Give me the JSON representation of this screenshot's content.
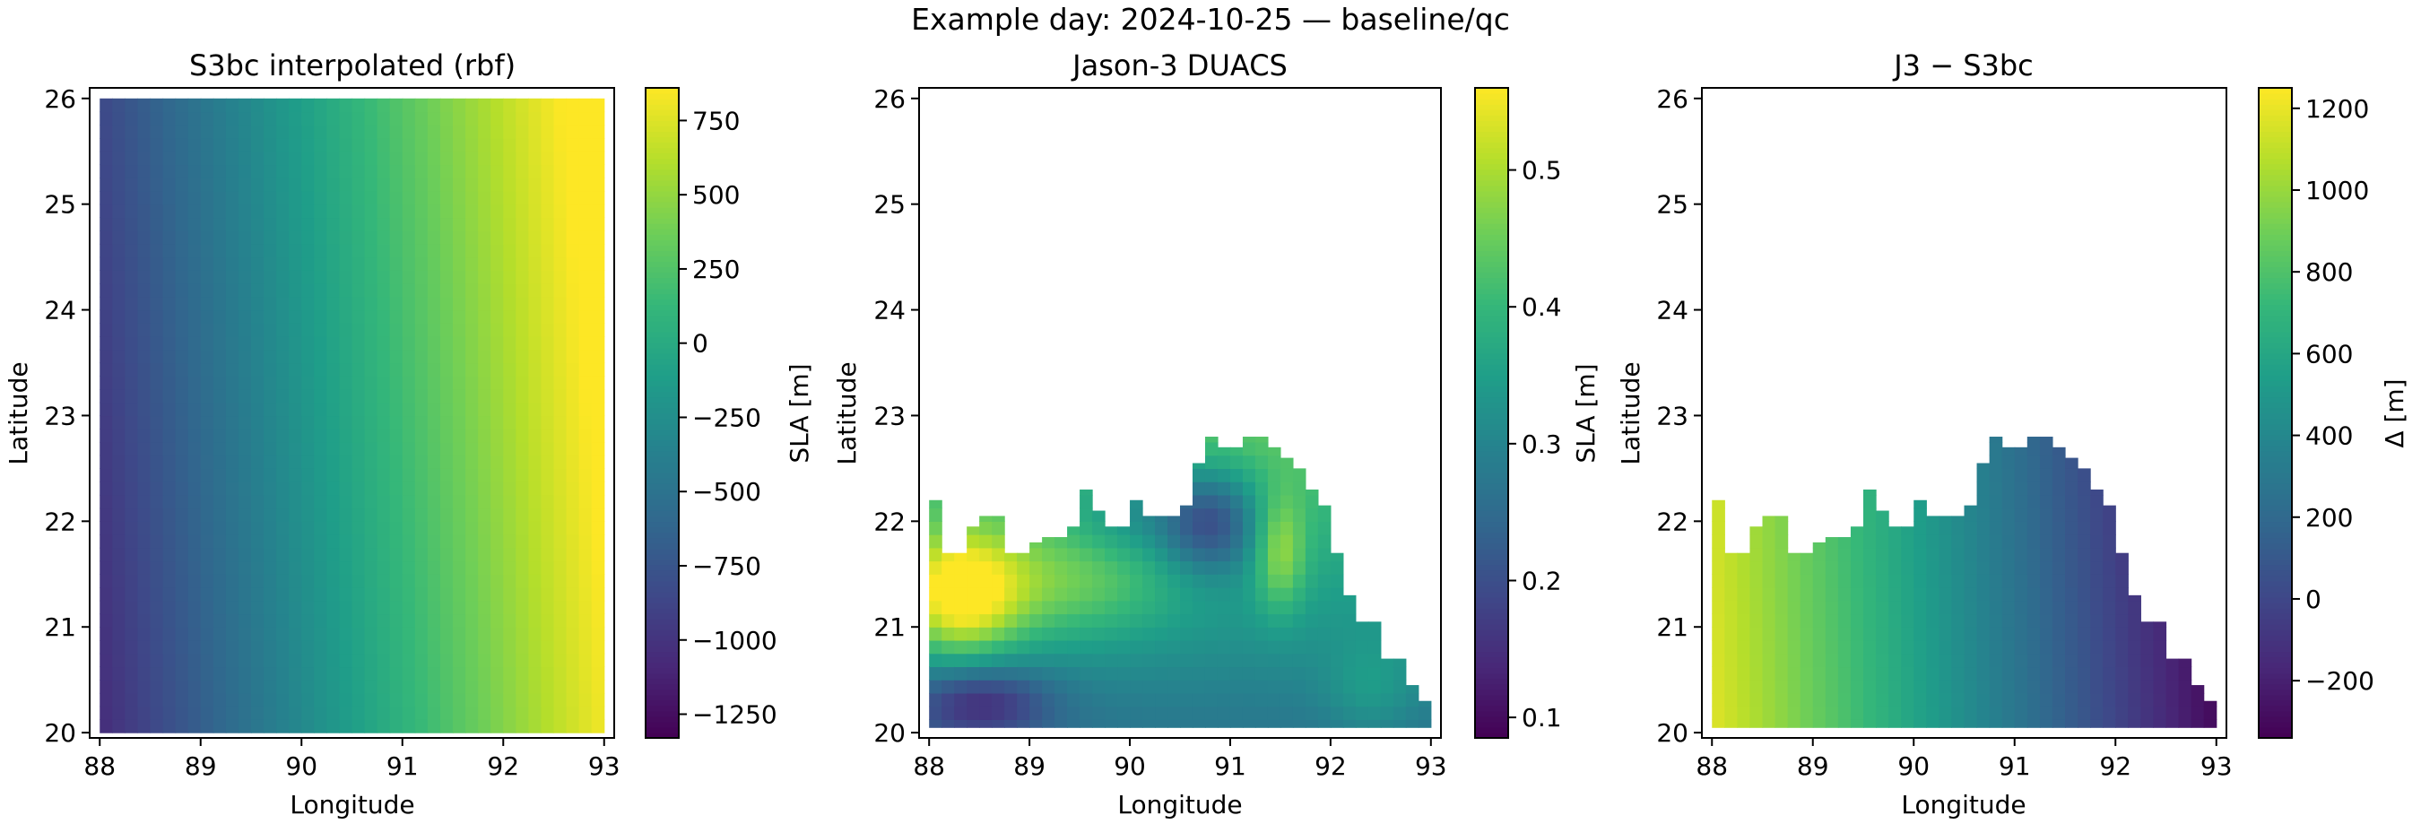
{
  "suptitle": "Example day: 2024-10-25 — baseline/qc",
  "chart_data": [
    {
      "type": "heatmap",
      "title": "S3bc interpolated (rbf)",
      "xlabel": "Longitude",
      "ylabel": "Latitude",
      "xlim": [
        87.9,
        93.1
      ],
      "ylim": [
        19.95,
        26.1
      ],
      "xticks": [
        88,
        89,
        90,
        91,
        92,
        93
      ],
      "yticks": [
        20,
        21,
        22,
        23,
        24,
        25,
        26
      ],
      "grid": {
        "lon_min": 88.0,
        "lon_max": 93.0,
        "lat_min": 20.0,
        "lat_max": 26.0,
        "nx": 40,
        "ny": 48
      },
      "field": {
        "kind": "plane",
        "west": -1050,
        "east": 820,
        "north_shift": 200,
        "coverage": "full"
      },
      "colorbar": {
        "label": "SLA [m]",
        "vmin": -1330,
        "vmax": 860,
        "ticks": [
          -1250,
          -1000,
          -750,
          -500,
          -250,
          0,
          250,
          500,
          750
        ],
        "tick_labels": [
          "−1250",
          "−1000",
          "−750",
          "−500",
          "−250",
          "0",
          "250",
          "500",
          "750"
        ]
      },
      "colormap": "viridis",
      "grid_lines": false
    },
    {
      "type": "heatmap",
      "title": "Jason-3 DUACS",
      "xlabel": "Longitude",
      "ylabel": "Latitude",
      "xlim": [
        87.9,
        93.1
      ],
      "ylim": [
        19.95,
        26.1
      ],
      "xticks": [
        88,
        89,
        90,
        91,
        92,
        93
      ],
      "yticks": [
        20,
        21,
        22,
        23,
        24,
        25,
        26
      ],
      "grid": {
        "lon_min": 88.0,
        "lon_max": 93.0,
        "lat_min": 20.0,
        "lat_max": 26.0,
        "nx": 40,
        "ny": 48
      },
      "field": {
        "kind": "duacs",
        "coverage": "coast_mask"
      },
      "colorbar": {
        "label": "SLA [m]",
        "vmin": 0.085,
        "vmax": 0.56,
        "ticks": [
          0.1,
          0.2,
          0.3,
          0.4,
          0.5
        ],
        "tick_labels": [
          "0.1",
          "0.2",
          "0.3",
          "0.4",
          "0.5"
        ]
      },
      "colormap": "viridis",
      "grid_lines": false
    },
    {
      "type": "heatmap",
      "title": "J3 − S3bc",
      "xlabel": "Longitude",
      "ylabel": "Latitude",
      "xlim": [
        87.9,
        93.1
      ],
      "ylim": [
        19.95,
        26.1
      ],
      "xticks": [
        88,
        89,
        90,
        91,
        92,
        93
      ],
      "yticks": [
        20,
        21,
        22,
        23,
        24,
        25,
        26
      ],
      "grid": {
        "lon_min": 88.0,
        "lon_max": 93.0,
        "lat_min": 20.0,
        "lat_max": 26.0,
        "nx": 40,
        "ny": 48
      },
      "field": {
        "kind": "plane",
        "west": 1180,
        "east": -300,
        "north_shift": -100,
        "coverage": "coast_mask"
      },
      "colorbar": {
        "label": "Δ [m]",
        "vmin": -340,
        "vmax": 1250,
        "ticks": [
          -200,
          0,
          200,
          400,
          600,
          800,
          1000,
          1200
        ],
        "tick_labels": [
          "−200",
          "0",
          "200",
          "400",
          "600",
          "800",
          "1000",
          "1200"
        ]
      },
      "colormap": "viridis",
      "grid_lines": false
    }
  ],
  "coast_mask": {
    "lon_edges": [
      88.0,
      88.125,
      88.25,
      88.375,
      88.5,
      88.625,
      88.75,
      88.875,
      89.0,
      89.125,
      89.25,
      89.375,
      89.5,
      89.625,
      89.75,
      89.875,
      90.0,
      90.125,
      90.25,
      90.375,
      90.5,
      90.625,
      90.75,
      90.875,
      91.0,
      91.125,
      91.25,
      91.375,
      91.5,
      91.625,
      91.75,
      91.875,
      92.0,
      92.125,
      92.25,
      92.375,
      92.5,
      92.625,
      92.75,
      92.875,
      93.0
    ],
    "lat_bottom": 20.05,
    "lat_tops": [
      22.2,
      21.7,
      21.7,
      21.95,
      22.05,
      22.05,
      21.7,
      21.7,
      21.8,
      21.85,
      21.85,
      21.95,
      22.3,
      22.1,
      21.95,
      21.95,
      22.2,
      22.05,
      22.05,
      22.05,
      22.15,
      22.55,
      22.8,
      22.7,
      22.7,
      22.8,
      22.8,
      22.7,
      22.6,
      22.5,
      22.3,
      22.15,
      21.7,
      21.3,
      21.05,
      21.05,
      20.7,
      20.7,
      20.45,
      20.3
    ]
  },
  "colors": {
    "viridis": [
      "#440154",
      "#482878",
      "#3e4989",
      "#31688e",
      "#26828e",
      "#1f9e89",
      "#35b779",
      "#6ece58",
      "#b5de2b",
      "#fde725"
    ]
  }
}
